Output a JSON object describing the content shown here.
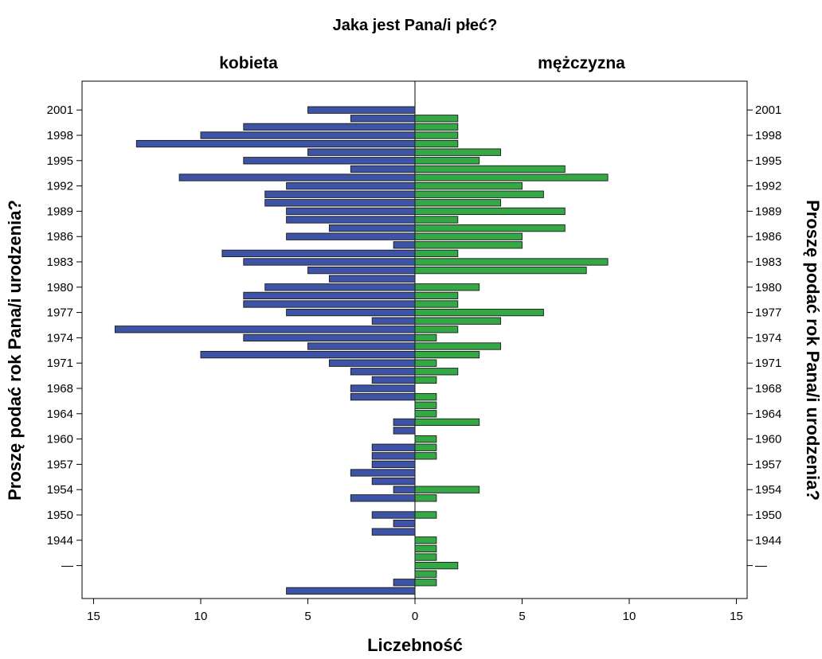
{
  "chart_data": {
    "type": "bar",
    "orientation": "horizontal-back-to-back",
    "title": "Jaka jest Pana/i płeć?",
    "xlabel": "Liczebność",
    "ylabel": "Proszę podać rok Pana/i urodzenia?",
    "xlim": [
      0,
      15
    ],
    "x_ticks": [
      0,
      5,
      10,
      15
    ],
    "y_tick_labels": [
      "2001",
      "1998",
      "1995",
      "1992",
      "1989",
      "1986",
      "1983",
      "1980",
      "1977",
      "1974",
      "1971",
      "1968",
      "1964",
      "1960",
      "1957",
      "1954",
      "1950",
      "1944",
      "—"
    ],
    "legend": "none",
    "grid": false,
    "series": [
      {
        "name": "kobieta",
        "side": "left",
        "color": "#3d53a5",
        "values": [
          5,
          3,
          8,
          10,
          13,
          5,
          8,
          3,
          11,
          6,
          7,
          7,
          6,
          6,
          4,
          6,
          1,
          9,
          8,
          5,
          4,
          7,
          8,
          8,
          6,
          2,
          14,
          8,
          5,
          10,
          4,
          3,
          2,
          3,
          3,
          0,
          0,
          1,
          1,
          0,
          2,
          2,
          2,
          3,
          2,
          1,
          3,
          0,
          2,
          1,
          2,
          0,
          0,
          0,
          0,
          0,
          1,
          6
        ]
      },
      {
        "name": "mężczyzna",
        "side": "right",
        "color": "#33a844",
        "values": [
          0,
          2,
          2,
          2,
          2,
          4,
          3,
          7,
          9,
          5,
          6,
          4,
          7,
          2,
          7,
          5,
          5,
          2,
          9,
          8,
          0,
          3,
          2,
          2,
          6,
          4,
          2,
          1,
          4,
          3,
          1,
          2,
          1,
          0,
          1,
          1,
          1,
          3,
          0,
          1,
          1,
          1,
          0,
          0,
          0,
          3,
          1,
          0,
          1,
          0,
          0,
          1,
          1,
          1,
          2,
          1,
          1,
          0
        ]
      }
    ]
  }
}
